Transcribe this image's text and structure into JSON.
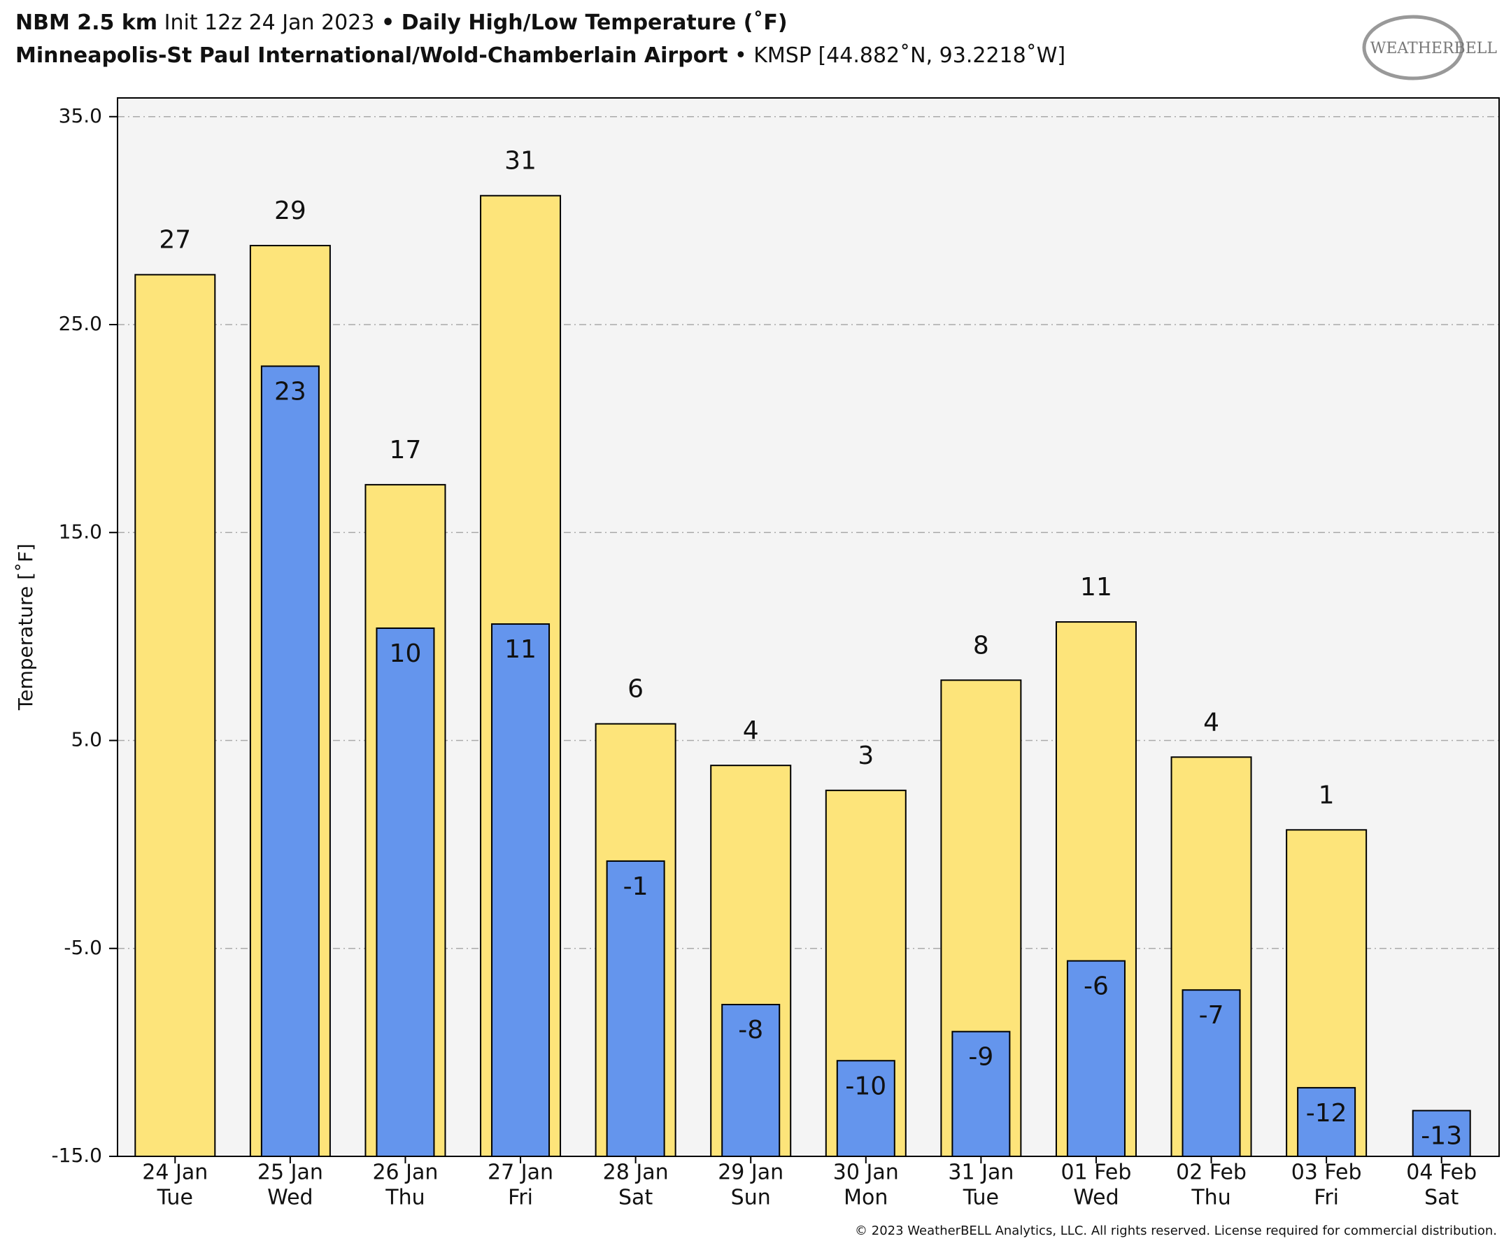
{
  "chart_data": {
    "type": "bar",
    "title_parts": [
      "NBM 2.5 km",
      "Init 12z 24 Jan 2023",
      "•",
      "Daily High/Low Temperature (˚F)"
    ],
    "subtitle_parts": [
      "Minneapolis-St Paul International/Wold-Chamberlain Airport",
      "• KMSP [44.882˚N, 93.2218˚W]"
    ],
    "logo": "WEATHERBELL",
    "ylabel": "Temperature [˚F]",
    "copyright": "© 2023 WeatherBELL Analytics, LLC. All rights reserved. License required for commercial distribution.",
    "categories": [
      "24 Jan",
      "25 Jan",
      "26 Jan",
      "27 Jan",
      "28 Jan",
      "29 Jan",
      "30 Jan",
      "31 Jan",
      "01 Feb",
      "02 Feb",
      "03 Feb",
      "04 Feb"
    ],
    "weekdays": [
      "Tue",
      "Wed",
      "Thu",
      "Fri",
      "Sat",
      "Sun",
      "Mon",
      "Tue",
      "Wed",
      "Thu",
      "Fri",
      "Sat"
    ],
    "series": [
      {
        "color": "#fde47a",
        "values": [
          27.4,
          28.8,
          17.3,
          31.2,
          5.8,
          3.8,
          2.6,
          7.9,
          10.7,
          4.2,
          0.7,
          null
        ],
        "value_labels": [
          "27",
          "29",
          "17",
          "31",
          "6",
          "4",
          "3",
          "8",
          "11",
          "4",
          "1",
          null
        ]
      },
      {
        "color": "#6495ed",
        "values": [
          null,
          23.0,
          10.4,
          10.6,
          -0.8,
          -7.7,
          -10.4,
          -9.0,
          -5.6,
          -7.0,
          -11.7,
          -12.8
        ],
        "value_labels": [
          null,
          "23",
          "10",
          "11",
          "-1",
          "-8",
          "-10",
          "-9",
          "-6",
          "-7",
          "-12",
          "-13"
        ]
      }
    ],
    "ylim": [
      -15,
      35.9
    ],
    "yticks": [
      {
        "value": -15,
        "label": "-15.0"
      },
      {
        "value": -5,
        "label": "-5.0"
      },
      {
        "value": 5,
        "label": "5.0"
      },
      {
        "value": 15,
        "label": "15.0"
      },
      {
        "value": 25,
        "label": "25.0"
      },
      {
        "value": 35,
        "label": "35.0"
      }
    ],
    "grid": true
  }
}
